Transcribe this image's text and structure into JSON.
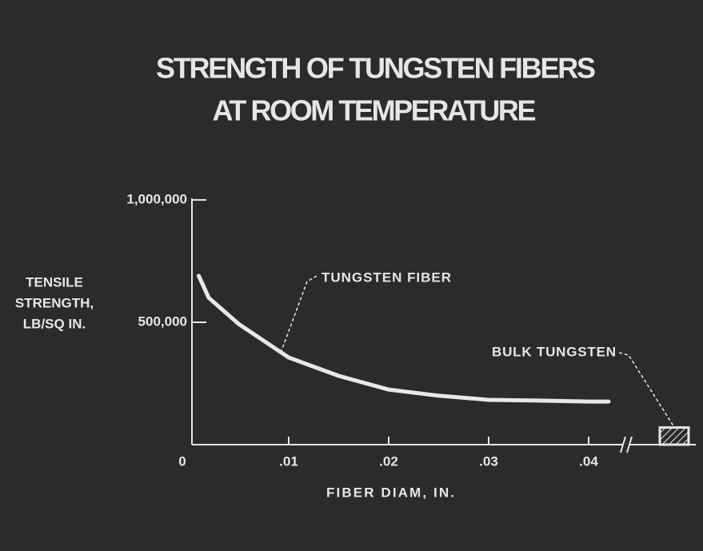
{
  "chart_data": {
    "type": "line",
    "title": [
      "STRENGTH OF TUNGSTEN FIBERS",
      "AT ROOM TEMPERATURE"
    ],
    "ylabel": [
      "TENSILE",
      "STRENGTH,",
      "LB/SQ IN."
    ],
    "xlabel": "FIBER DIAM, IN.",
    "xlim": [
      0,
      0.043
    ],
    "ylim": [
      0,
      1000000
    ],
    "xticks": [
      0,
      {
        "value": 0.01,
        "label": ".01"
      },
      {
        "value": 0.02,
        "label": ".02"
      },
      {
        "value": 0.03,
        "label": ".03"
      },
      {
        "value": 0.04,
        "label": ".04"
      }
    ],
    "yticks": [
      {
        "value": 500000,
        "label": "500,000"
      },
      {
        "value": 1000000,
        "label": "1,000,000"
      }
    ],
    "series": [
      {
        "name": "TUNGSTEN FIBER",
        "color": "#e8e8e8",
        "x": [
          0.001,
          0.002,
          0.005,
          0.01,
          0.015,
          0.02,
          0.025,
          0.03,
          0.035,
          0.04,
          0.042
        ],
        "values": [
          690000,
          600000,
          493000,
          356000,
          281000,
          225000,
          200000,
          183000,
          180000,
          176000,
          176000
        ]
      }
    ],
    "bulk": {
      "label": "BULK TUNGSTEN",
      "value": 70000
    }
  }
}
